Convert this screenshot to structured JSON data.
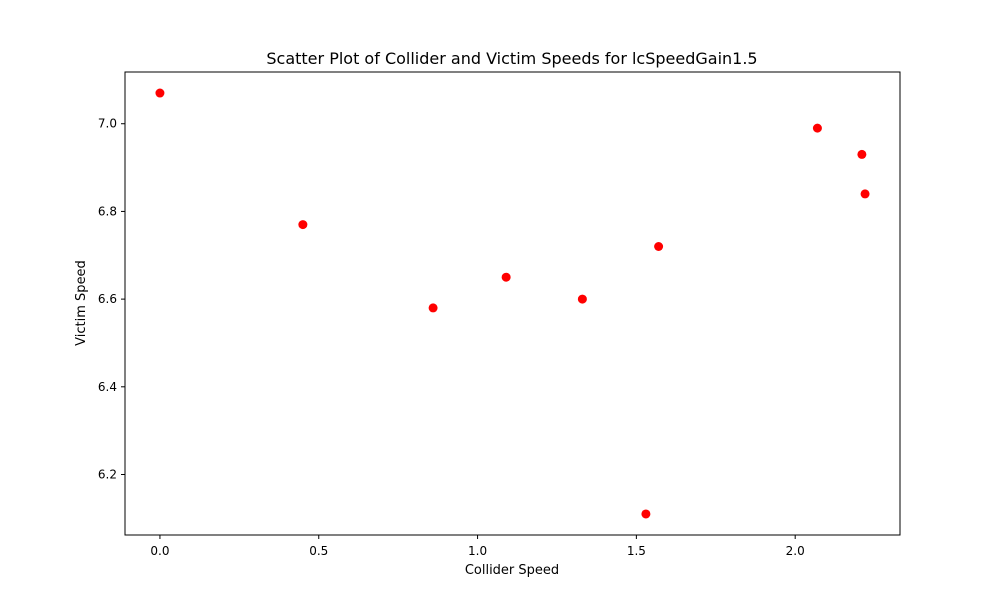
{
  "chart_data": {
    "type": "scatter",
    "title": "Scatter Plot of Collider and Victim Speeds for lcSpeedGain1.5",
    "xlabel": "Collider Speed",
    "ylabel": "Victim Speed",
    "xlim": [
      -0.11,
      2.33
    ],
    "ylim": [
      6.062,
      7.118
    ],
    "xticks": [
      0.0,
      0.5,
      1.0,
      1.5,
      2.0
    ],
    "xtick_labels": [
      "0.0",
      "0.5",
      "1.0",
      "1.5",
      "2.0"
    ],
    "yticks": [
      6.2,
      6.4,
      6.6,
      6.8,
      7.0
    ],
    "ytick_labels": [
      "6.2",
      "6.4",
      "6.6",
      "6.8",
      "7.0"
    ],
    "grid": false,
    "marker_color": "#ff0000",
    "series": [
      {
        "points": [
          {
            "x": 0.0,
            "y": 7.07
          },
          {
            "x": 0.45,
            "y": 6.77
          },
          {
            "x": 0.86,
            "y": 6.58
          },
          {
            "x": 1.09,
            "y": 6.65
          },
          {
            "x": 1.33,
            "y": 6.6
          },
          {
            "x": 1.53,
            "y": 6.11
          },
          {
            "x": 1.57,
            "y": 6.72
          },
          {
            "x": 2.07,
            "y": 6.99
          },
          {
            "x": 2.21,
            "y": 6.93
          },
          {
            "x": 2.22,
            "y": 6.84
          }
        ]
      }
    ]
  }
}
